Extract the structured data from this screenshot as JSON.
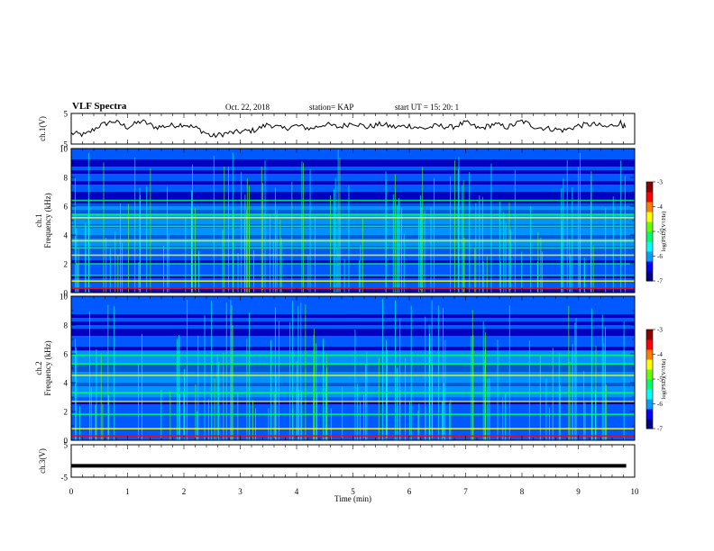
{
  "header": {
    "title": "VLF Spectra",
    "date": "Oct. 22, 2018",
    "station": "station= KAP",
    "start_ut": "start  UT =   15: 20: 1"
  },
  "colors": {
    "waveform": "#000000",
    "colormap": [
      "#00008b",
      "#0000ff",
      "#00a0ff",
      "#00ffff",
      "#00ff66",
      "#66ff00",
      "#ffff00",
      "#ff8000",
      "#ff0000",
      "#8b0000"
    ]
  },
  "chart_data": [
    {
      "type": "line",
      "panel": "ch1-waveform",
      "ylabel": "ch.1(V)",
      "ylim": [
        -5,
        5
      ],
      "yticks": [
        "5",
        "-5"
      ],
      "xlim": [
        0,
        10
      ],
      "x": [
        0.0,
        0.25,
        0.5,
        0.75,
        1.0,
        1.25,
        1.5,
        1.75,
        2.0,
        2.25,
        2.5,
        2.75,
        3.0,
        3.25,
        3.5,
        3.75,
        4.0,
        4.25,
        4.5,
        4.75,
        5.0,
        5.25,
        5.5,
        5.75,
        6.0,
        6.25,
        6.5,
        6.75,
        7.0,
        7.25,
        7.5,
        7.75,
        8.0,
        8.25,
        8.5,
        8.75,
        9.0,
        9.25,
        9.5,
        9.75,
        9.85
      ],
      "y": [
        -1.5,
        -2.0,
        1.0,
        2.5,
        0.5,
        2.5,
        0.5,
        1.0,
        1.5,
        0.0,
        -2.5,
        -1.5,
        -1.0,
        -0.5,
        1.5,
        0.0,
        1.0,
        0.0,
        1.5,
        0.5,
        2.0,
        0.5,
        1.5,
        0.5,
        1.0,
        0.0,
        1.0,
        0.5,
        2.0,
        0.0,
        1.5,
        0.5,
        2.5,
        0.5,
        0.0,
        -0.5,
        1.0,
        1.5,
        0.5,
        2.0,
        0.0
      ]
    },
    {
      "type": "heatmap",
      "panel": "ch1-spectrogram",
      "ylabel": "ch.1\nFrequency (kHz)",
      "ylim": [
        0,
        10
      ],
      "yticks": [
        "0",
        "2",
        "4",
        "6",
        "8",
        "10"
      ],
      "xlim": [
        0,
        10
      ],
      "colorbar": {
        "label": "log(PSD)(V²/Hz)",
        "range": [
          -7,
          -3
        ],
        "ticks": [
          "-3",
          "-4",
          "-5",
          "-6",
          "-7"
        ]
      },
      "bands_khz": [
        {
          "f": 0.3,
          "level": "red"
        },
        {
          "f": 0.8,
          "level": "yellow"
        },
        {
          "f": 1.2,
          "level": "green"
        },
        {
          "f": 2.0,
          "level": "green"
        },
        {
          "f": 2.6,
          "level": "yellow"
        },
        {
          "f": 3.1,
          "level": "green"
        },
        {
          "f": 3.6,
          "level": "yellow"
        },
        {
          "f": 4.6,
          "level": "green"
        },
        {
          "f": 5.2,
          "level": "yellow"
        },
        {
          "f": 5.4,
          "level": "green"
        },
        {
          "f": 6.4,
          "level": "green"
        }
      ]
    },
    {
      "type": "heatmap",
      "panel": "ch2-spectrogram",
      "ylabel": "ch.2\nFrequency (kHz)",
      "ylim": [
        0,
        10
      ],
      "yticks": [
        "0",
        "2",
        "4",
        "6",
        "8",
        "10"
      ],
      "xlim": [
        0,
        10
      ],
      "colorbar": {
        "label": "log(PSD)(V²/Hz)",
        "range": [
          -7,
          -3
        ],
        "ticks": [
          "-3",
          "-4",
          "-5",
          "-6",
          "-7"
        ]
      },
      "bands_khz": [
        {
          "f": 0.3,
          "level": "red"
        },
        {
          "f": 0.8,
          "level": "yellow"
        },
        {
          "f": 1.8,
          "level": "green"
        },
        {
          "f": 2.7,
          "level": "yellow"
        },
        {
          "f": 3.3,
          "level": "green"
        },
        {
          "f": 4.5,
          "level": "yellow"
        },
        {
          "f": 5.3,
          "level": "green"
        },
        {
          "f": 5.9,
          "level": "green"
        }
      ]
    },
    {
      "type": "line",
      "panel": "ch3-waveform",
      "ylabel": "ch.3(V)",
      "ylim": [
        -5,
        5
      ],
      "yticks": [
        "5",
        "-5"
      ],
      "xlim": [
        0,
        10
      ],
      "x": [
        0,
        9.85
      ],
      "y": [
        -1.5,
        -1.5
      ]
    }
  ],
  "xaxis": {
    "label": "Time  (min)",
    "ticks": [
      "0",
      "1",
      "2",
      "3",
      "4",
      "5",
      "6",
      "7",
      "8",
      "9",
      "10"
    ]
  }
}
